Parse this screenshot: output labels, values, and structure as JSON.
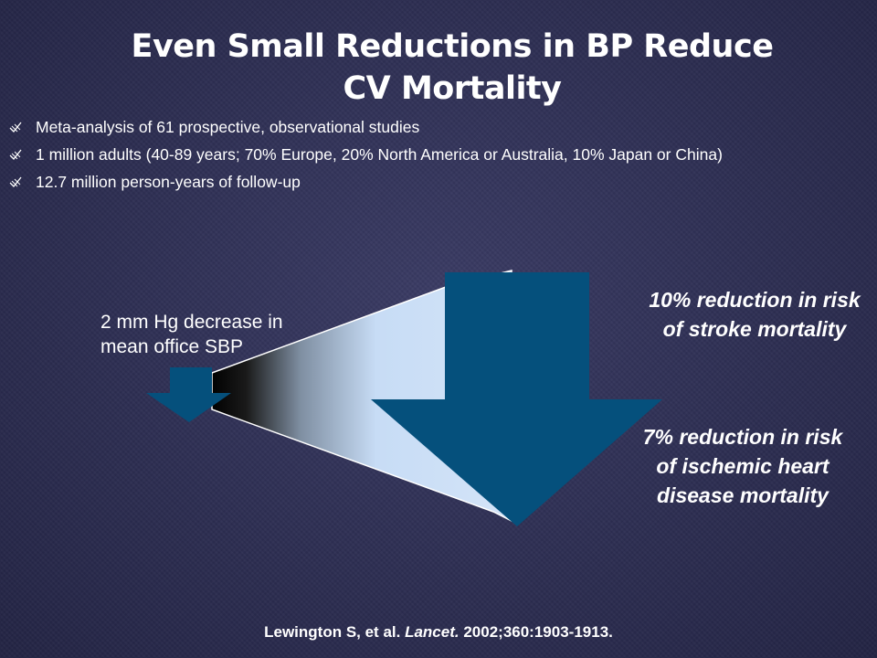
{
  "title": {
    "line1": "Even Small Reductions in BP Reduce",
    "line2": "CV Mortality"
  },
  "bullets": [
    "Meta-analysis of 61 prospective, observational studies",
    "1 million adults (40-89 years; 70% Europe, 20% North America or Australia, 10% Japan or China)",
    "12.7 million person-years of follow-up"
  ],
  "bullet_icon": "sketch-check-icon",
  "graphic": {
    "small_label": "2 mm Hg decrease in mean office SBP",
    "stroke_text": "10% reduction in risk of stroke mortality",
    "ihd_text": "7% reduction in risk of ischemic heart disease mortality",
    "arrow_color": "#05507c",
    "beam_color": "#c7dcf5"
  },
  "citation": {
    "authors": "Lewington S, et al.",
    "journal": "Lancet.",
    "details": "2002;360:1903-1913."
  }
}
